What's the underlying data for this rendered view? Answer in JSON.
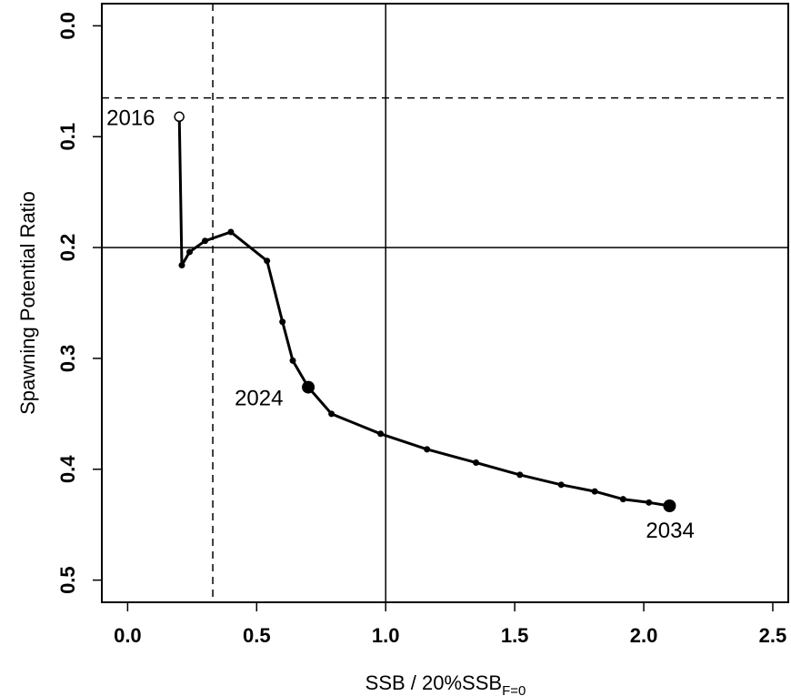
{
  "chart_data": {
    "type": "line",
    "xlabel_main": "SSB / 20%SSB",
    "xlabel_sub": "F=0",
    "ylabel": "Spawning Potential Ratio",
    "xlim": [
      -0.1,
      2.56
    ],
    "ylim": [
      -0.02,
      0.52
    ],
    "y_reversed": true,
    "x_ticks": [
      0.0,
      0.5,
      1.0,
      1.5,
      2.0,
      2.5
    ],
    "x_tick_labels": [
      "0.0",
      "0.5",
      "1.0",
      "1.5",
      "2.0",
      "2.5"
    ],
    "y_ticks": [
      0.0,
      0.1,
      0.2,
      0.3,
      0.4,
      0.5
    ],
    "y_tick_labels": [
      "0.0",
      "0.1",
      "0.2",
      "0.3",
      "0.4",
      "0.5"
    ],
    "reference_lines": {
      "vertical_solid": 1.0,
      "vertical_dashed": 0.33,
      "horizontal_solid": 0.2,
      "horizontal_dashed": 0.065
    },
    "series": [
      {
        "x": [
          0.2,
          0.21,
          0.24,
          0.3,
          0.4,
          0.54,
          0.6,
          0.64,
          0.7,
          0.79,
          0.98,
          1.16,
          1.35,
          1.52,
          1.68,
          1.81,
          1.92,
          2.02,
          2.1
        ],
        "y": [
          0.082,
          0.216,
          0.204,
          0.194,
          0.186,
          0.212,
          0.267,
          0.302,
          0.326,
          0.35,
          0.368,
          0.382,
          0.394,
          0.405,
          0.414,
          0.42,
          0.427,
          0.43,
          0.433
        ]
      }
    ],
    "labeled_points": [
      {
        "label": "2016",
        "x": 0.2,
        "y": 0.082,
        "marker": "open"
      },
      {
        "label": "2024",
        "x": 0.7,
        "y": 0.326,
        "marker": "filled-large"
      },
      {
        "label": "2034",
        "x": 2.1,
        "y": 0.433,
        "marker": "filled-large"
      }
    ],
    "grid": false,
    "legend": "none"
  }
}
